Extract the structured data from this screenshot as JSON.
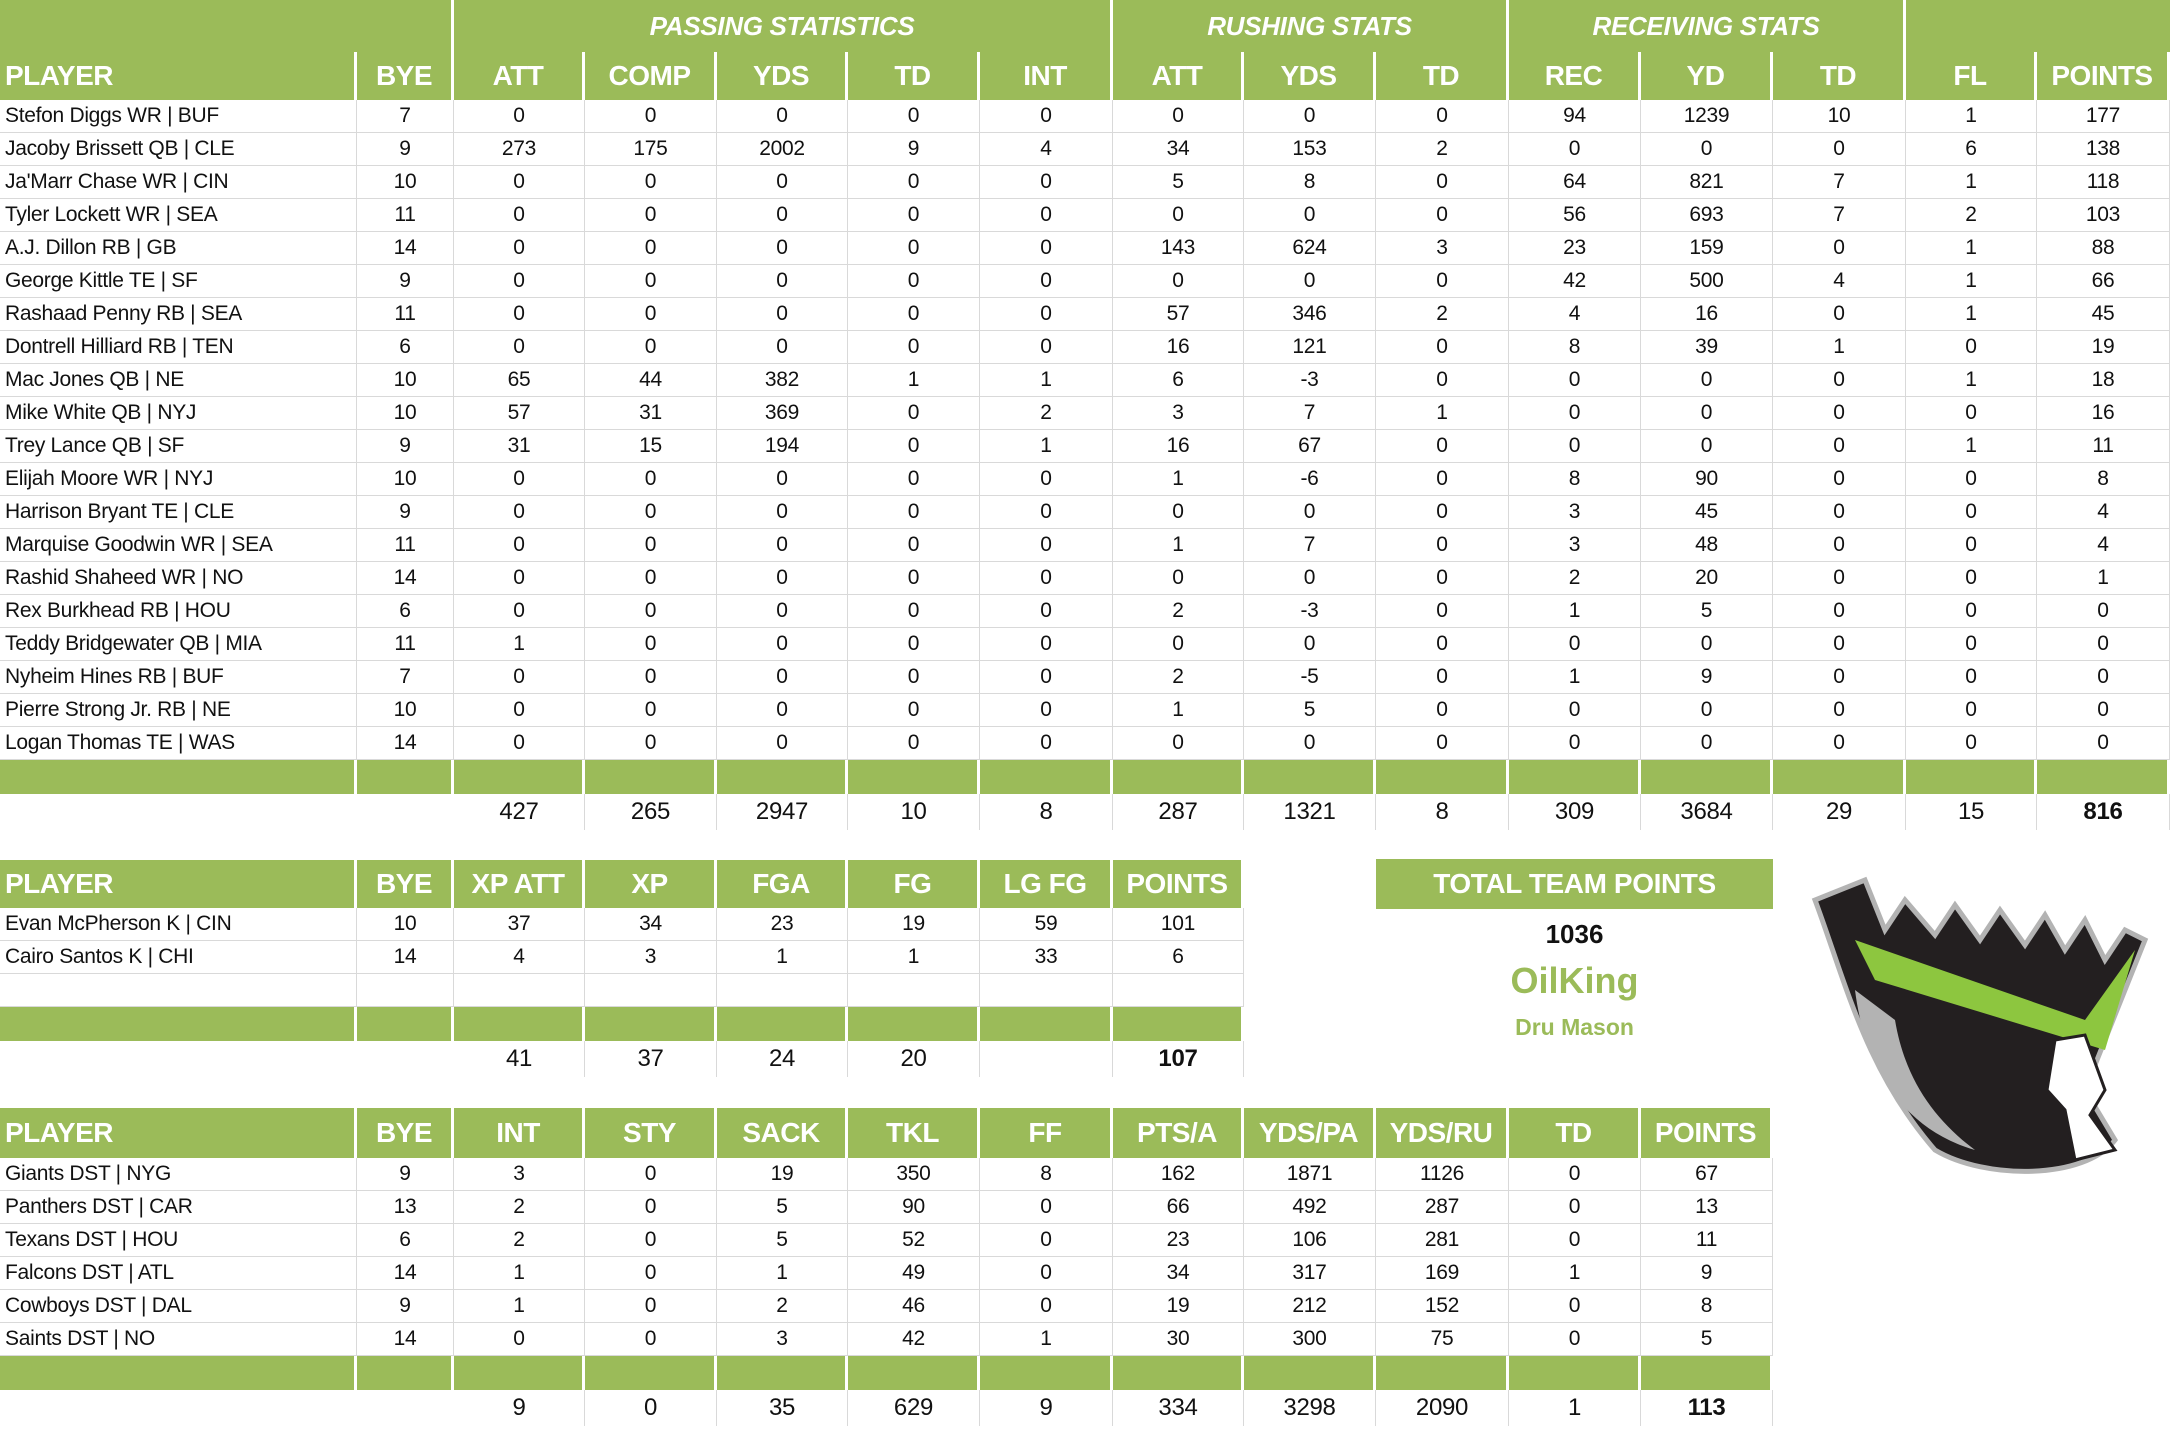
{
  "colors": {
    "header_green": "#9bbb59",
    "text": "#111111",
    "grid": "#d9d9d9",
    "logo_green": "#8dc63f",
    "logo_dark": "#231f20",
    "logo_gray": "#b3b3b3"
  },
  "offense": {
    "groups": [
      "PASSING STATISTICS",
      "RUSHING STATS",
      "RECEIVING STATS"
    ],
    "columns": [
      "PLAYER",
      "BYE",
      "ATT",
      "COMP",
      "YDS",
      "TD",
      "INT",
      "ATT",
      "YDS",
      "TD",
      "REC",
      "YD",
      "TD",
      "FL",
      "POINTS"
    ],
    "rows": [
      [
        "Stefon Diggs WR | BUF",
        "7",
        "0",
        "0",
        "0",
        "0",
        "0",
        "0",
        "0",
        "0",
        "94",
        "1239",
        "10",
        "1",
        "177"
      ],
      [
        "Jacoby Brissett QB | CLE",
        "9",
        "273",
        "175",
        "2002",
        "9",
        "4",
        "34",
        "153",
        "2",
        "0",
        "0",
        "0",
        "6",
        "138"
      ],
      [
        "Ja'Marr Chase WR | CIN",
        "10",
        "0",
        "0",
        "0",
        "0",
        "0",
        "5",
        "8",
        "0",
        "64",
        "821",
        "7",
        "1",
        "118"
      ],
      [
        "Tyler Lockett WR | SEA",
        "11",
        "0",
        "0",
        "0",
        "0",
        "0",
        "0",
        "0",
        "0",
        "56",
        "693",
        "7",
        "2",
        "103"
      ],
      [
        "A.J. Dillon RB | GB",
        "14",
        "0",
        "0",
        "0",
        "0",
        "0",
        "143",
        "624",
        "3",
        "23",
        "159",
        "0",
        "1",
        "88"
      ],
      [
        "George Kittle TE | SF",
        "9",
        "0",
        "0",
        "0",
        "0",
        "0",
        "0",
        "0",
        "0",
        "42",
        "500",
        "4",
        "1",
        "66"
      ],
      [
        "Rashaad Penny RB | SEA",
        "11",
        "0",
        "0",
        "0",
        "0",
        "0",
        "57",
        "346",
        "2",
        "4",
        "16",
        "0",
        "1",
        "45"
      ],
      [
        "Dontrell Hilliard RB | TEN",
        "6",
        "0",
        "0",
        "0",
        "0",
        "0",
        "16",
        "121",
        "0",
        "8",
        "39",
        "1",
        "0",
        "19"
      ],
      [
        "Mac Jones QB | NE",
        "10",
        "65",
        "44",
        "382",
        "1",
        "1",
        "6",
        "-3",
        "0",
        "0",
        "0",
        "0",
        "1",
        "18"
      ],
      [
        "Mike White QB | NYJ",
        "10",
        "57",
        "31",
        "369",
        "0",
        "2",
        "3",
        "7",
        "1",
        "0",
        "0",
        "0",
        "0",
        "16"
      ],
      [
        "Trey Lance QB | SF",
        "9",
        "31",
        "15",
        "194",
        "0",
        "1",
        "16",
        "67",
        "0",
        "0",
        "0",
        "0",
        "1",
        "11"
      ],
      [
        "Elijah Moore WR | NYJ",
        "10",
        "0",
        "0",
        "0",
        "0",
        "0",
        "1",
        "-6",
        "0",
        "8",
        "90",
        "0",
        "0",
        "8"
      ],
      [
        "Harrison Bryant TE | CLE",
        "9",
        "0",
        "0",
        "0",
        "0",
        "0",
        "0",
        "0",
        "0",
        "3",
        "45",
        "0",
        "0",
        "4"
      ],
      [
        "Marquise Goodwin WR | SEA",
        "11",
        "0",
        "0",
        "0",
        "0",
        "0",
        "1",
        "7",
        "0",
        "3",
        "48",
        "0",
        "0",
        "4"
      ],
      [
        "Rashid Shaheed WR | NO",
        "14",
        "0",
        "0",
        "0",
        "0",
        "0",
        "0",
        "0",
        "0",
        "2",
        "20",
        "0",
        "0",
        "1"
      ],
      [
        "Rex Burkhead RB | HOU",
        "6",
        "0",
        "0",
        "0",
        "0",
        "0",
        "2",
        "-3",
        "0",
        "1",
        "5",
        "0",
        "0",
        "0"
      ],
      [
        "Teddy Bridgewater QB | MIA",
        "11",
        "1",
        "0",
        "0",
        "0",
        "0",
        "0",
        "0",
        "0",
        "0",
        "0",
        "0",
        "0",
        "0"
      ],
      [
        "Nyheim Hines RB | BUF",
        "7",
        "0",
        "0",
        "0",
        "0",
        "0",
        "2",
        "-5",
        "0",
        "1",
        "9",
        "0",
        "0",
        "0"
      ],
      [
        "Pierre Strong Jr. RB | NE",
        "10",
        "0",
        "0",
        "0",
        "0",
        "0",
        "1",
        "5",
        "0",
        "0",
        "0",
        "0",
        "0",
        "0"
      ],
      [
        "Logan Thomas TE | WAS",
        "14",
        "0",
        "0",
        "0",
        "0",
        "0",
        "0",
        "0",
        "0",
        "0",
        "0",
        "0",
        "0",
        "0"
      ]
    ],
    "totals": [
      "",
      "",
      "427",
      "265",
      "2947",
      "10",
      "8",
      "287",
      "1321",
      "8",
      "309",
      "3684",
      "29",
      "15",
      "816"
    ]
  },
  "kickers": {
    "columns": [
      "PLAYER",
      "BYE",
      "XP ATT",
      "XP",
      "FGA",
      "FG",
      "LG FG",
      "POINTS"
    ],
    "rows": [
      [
        "Evan McPherson K | CIN",
        "10",
        "37",
        "34",
        "23",
        "19",
        "59",
        "101"
      ],
      [
        "Cairo Santos K | CHI",
        "14",
        "4",
        "3",
        "1",
        "1",
        "33",
        "6"
      ],
      [
        "",
        "",
        "",
        "",
        "",
        "",
        "",
        ""
      ]
    ],
    "totals": [
      "",
      "",
      "41",
      "37",
      "24",
      "20",
      "",
      "107"
    ]
  },
  "defense": {
    "columns": [
      "PLAYER",
      "BYE",
      "INT",
      "STY",
      "SACK",
      "TKL",
      "FF",
      "PTS/A",
      "YDS/PA",
      "YDS/RU",
      "TD",
      "POINTS"
    ],
    "rows": [
      [
        "Giants DST | NYG",
        "9",
        "3",
        "0",
        "19",
        "350",
        "8",
        "162",
        "1871",
        "1126",
        "0",
        "67"
      ],
      [
        "Panthers DST | CAR",
        "13",
        "2",
        "0",
        "5",
        "90",
        "0",
        "66",
        "492",
        "287",
        "0",
        "13"
      ],
      [
        "Texans DST | HOU",
        "6",
        "2",
        "0",
        "5",
        "52",
        "0",
        "23",
        "106",
        "281",
        "0",
        "11"
      ],
      [
        "Falcons DST | ATL",
        "14",
        "1",
        "0",
        "1",
        "49",
        "0",
        "34",
        "317",
        "169",
        "1",
        "9"
      ],
      [
        "Cowboys DST | DAL",
        "9",
        "1",
        "0",
        "2",
        "46",
        "0",
        "19",
        "212",
        "152",
        "0",
        "8"
      ],
      [
        "Saints DST | NO",
        "14",
        "0",
        "0",
        "3",
        "42",
        "1",
        "30",
        "300",
        "75",
        "0",
        "5"
      ]
    ],
    "totals": [
      "",
      "",
      "9",
      "0",
      "35",
      "629",
      "9",
      "334",
      "3298",
      "2090",
      "1",
      "113"
    ]
  },
  "team": {
    "header": "TOTAL TEAM POINTS",
    "total": "1036",
    "name": "OilKing",
    "owner": "Dru Mason",
    "logo": "oilking-crown-head-logo"
  }
}
